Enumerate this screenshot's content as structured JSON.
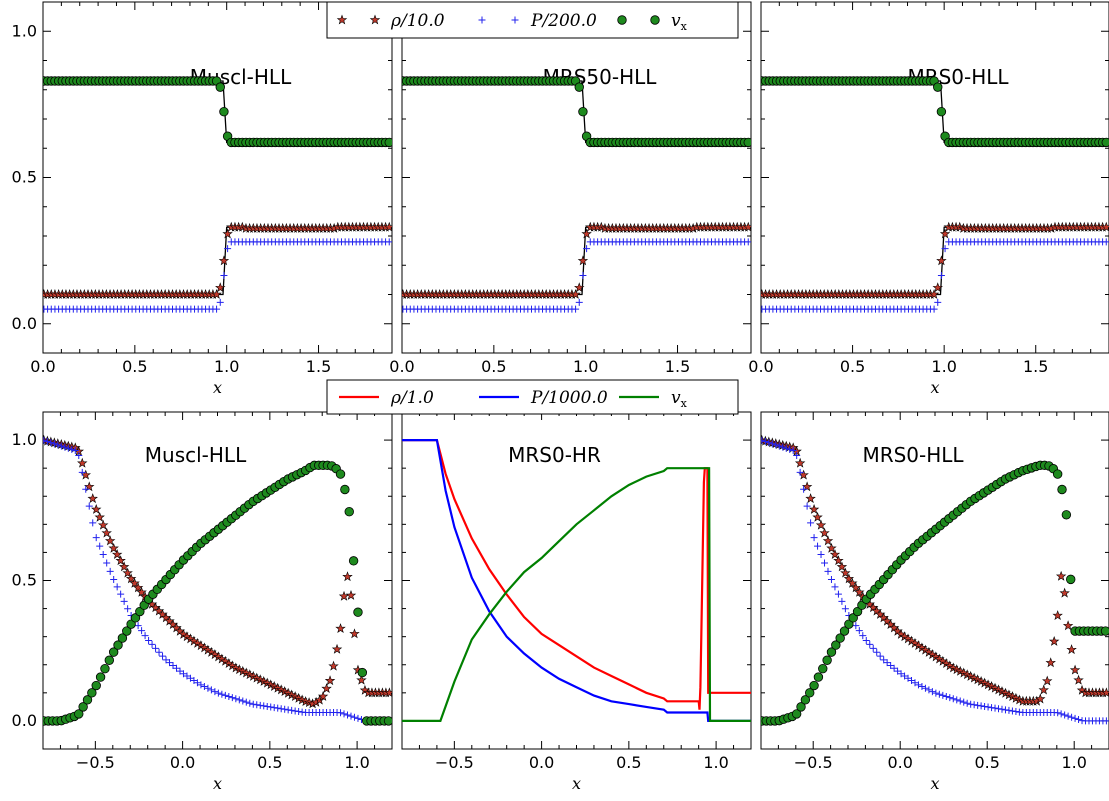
{
  "colors": {
    "rho": "#c0392b",
    "pressure": "#2222ee",
    "vx": "#1e8a1e",
    "exact": "#000000",
    "line_rho": "#ff0000",
    "line_p": "#0000ff",
    "line_vx": "#008000"
  },
  "legend_top": [
    {
      "label": "ρ/10.0",
      "marker": "star",
      "color": "#c0392b"
    },
    {
      "label": "P/200.0",
      "marker": "plus",
      "color": "#2222ee"
    },
    {
      "label": "v",
      "sub": "x",
      "marker": "circle",
      "color": "#1e8a1e"
    }
  ],
  "legend_bottom": [
    {
      "label": "ρ/1.0",
      "marker": "line",
      "color": "#ff0000"
    },
    {
      "label": "P/1000.0",
      "marker": "line",
      "color": "#0000ff"
    },
    {
      "label": "v",
      "sub": "x",
      "marker": "line",
      "color": "#008000"
    }
  ],
  "chart_data": [
    {
      "type": "scatter",
      "title": "Muscl-HLL",
      "xlabel": "x",
      "ylabel": "",
      "xlim": [
        0,
        1.9
      ],
      "ylim": [
        -0.1,
        1.1
      ],
      "xticks": [
        0.0,
        0.5,
        1.0,
        1.5
      ],
      "yticks": [
        0.0,
        0.5,
        1.0
      ],
      "shock_position": 0.98,
      "series": [
        {
          "name": "ρ/10.0",
          "marker": "star",
          "left": 0.1,
          "right": 0.33
        },
        {
          "name": "P/200.0",
          "marker": "plus",
          "left": 0.05,
          "right": 0.28
        },
        {
          "name": "v_x",
          "marker": "circle",
          "left": 0.83,
          "right": 0.62
        }
      ]
    },
    {
      "type": "scatter",
      "title": "MRS50-HLL",
      "xlabel": "x",
      "ylabel": "",
      "xlim": [
        0,
        1.9
      ],
      "ylim": [
        -0.1,
        1.1
      ],
      "xticks": [
        0.0,
        0.5,
        1.0,
        1.5
      ],
      "yticks": [
        0.0,
        0.5,
        1.0
      ],
      "shock_position": 0.98,
      "series": [
        {
          "name": "ρ/10.0",
          "marker": "star",
          "left": 0.1,
          "right": 0.33
        },
        {
          "name": "P/200.0",
          "marker": "plus",
          "left": 0.05,
          "right": 0.28
        },
        {
          "name": "v_x",
          "marker": "circle",
          "left": 0.83,
          "right": 0.62
        }
      ]
    },
    {
      "type": "scatter",
      "title": "MRS0-HLL",
      "xlabel": "x",
      "ylabel": "",
      "xlim": [
        0,
        1.9
      ],
      "ylim": [
        -0.1,
        1.1
      ],
      "xticks": [
        0.0,
        0.5,
        1.0,
        1.5
      ],
      "yticks": [
        0.0,
        0.5,
        1.0
      ],
      "shock_position": 0.98,
      "series": [
        {
          "name": "ρ/10.0",
          "marker": "star",
          "left": 0.1,
          "right": 0.33
        },
        {
          "name": "P/200.0",
          "marker": "plus",
          "left": 0.05,
          "right": 0.28
        },
        {
          "name": "v_x",
          "marker": "circle",
          "left": 0.83,
          "right": 0.62
        }
      ]
    },
    {
      "type": "scatter",
      "title": "Muscl-HLL",
      "xlabel": "x",
      "ylabel": "",
      "xlim": [
        -0.8,
        1.2
      ],
      "ylim": [
        -0.1,
        1.1
      ],
      "xticks": [
        -0.5,
        0.0,
        0.5,
        1.0
      ],
      "yticks": [
        0.0,
        0.5,
        1.0
      ],
      "series": [
        {
          "name": "ρ/1.0",
          "marker": "star",
          "x": [
            -0.8,
            -0.6,
            -0.5,
            -0.4,
            -0.3,
            -0.2,
            -0.1,
            0.0,
            0.1,
            0.2,
            0.3,
            0.4,
            0.5,
            0.6,
            0.7,
            0.75,
            0.8,
            0.85,
            0.9,
            0.94,
            0.97,
            1.0,
            1.05,
            1.2
          ],
          "y": [
            1.0,
            0.97,
            0.76,
            0.62,
            0.51,
            0.43,
            0.37,
            0.31,
            0.27,
            0.23,
            0.19,
            0.16,
            0.13,
            0.1,
            0.07,
            0.06,
            0.08,
            0.15,
            0.3,
            0.53,
            0.43,
            0.19,
            0.1,
            0.1
          ]
        },
        {
          "name": "P/1000.0",
          "marker": "plus",
          "x": [
            -0.8,
            -0.6,
            -0.5,
            -0.4,
            -0.3,
            -0.2,
            -0.1,
            0.0,
            0.1,
            0.2,
            0.3,
            0.4,
            0.5,
            0.6,
            0.7,
            0.8,
            0.9,
            0.95,
            1.0,
            1.05,
            1.2
          ],
          "y": [
            1.0,
            0.96,
            0.66,
            0.51,
            0.38,
            0.29,
            0.22,
            0.17,
            0.13,
            0.1,
            0.08,
            0.06,
            0.05,
            0.04,
            0.03,
            0.03,
            0.03,
            0.02,
            0.01,
            0.0,
            0.0
          ]
        },
        {
          "name": "v_x",
          "marker": "circle",
          "x": [
            -0.8,
            -0.7,
            -0.6,
            -0.5,
            -0.4,
            -0.3,
            -0.2,
            -0.1,
            0.0,
            0.1,
            0.2,
            0.3,
            0.4,
            0.5,
            0.6,
            0.7,
            0.75,
            0.8,
            0.85,
            0.9,
            0.95,
            1.0,
            1.05
          ],
          "y": [
            0.0,
            0.0,
            0.02,
            0.12,
            0.24,
            0.34,
            0.43,
            0.5,
            0.57,
            0.63,
            0.68,
            0.73,
            0.78,
            0.82,
            0.86,
            0.89,
            0.91,
            0.91,
            0.91,
            0.89,
            0.78,
            0.43,
            0.0
          ]
        }
      ]
    },
    {
      "type": "line",
      "title": "MRS0-HR",
      "xlabel": "x",
      "ylabel": "",
      "xlim": [
        -0.8,
        1.2
      ],
      "ylim": [
        -0.1,
        1.1
      ],
      "xticks": [
        -0.5,
        0.0,
        0.5,
        1.0
      ],
      "yticks": [
        0.0,
        0.5,
        1.0
      ],
      "series": [
        {
          "name": "ρ/1.0",
          "x": [
            -0.8,
            -0.6,
            -0.55,
            -0.5,
            -0.4,
            -0.3,
            -0.2,
            -0.1,
            0.0,
            0.1,
            0.2,
            0.3,
            0.4,
            0.5,
            0.6,
            0.7,
            0.72,
            0.9,
            0.905,
            0.91,
            0.915,
            0.93,
            0.935,
            0.95,
            0.955,
            1.2
          ],
          "y": [
            1.0,
            1.0,
            0.88,
            0.79,
            0.65,
            0.54,
            0.45,
            0.37,
            0.31,
            0.27,
            0.23,
            0.19,
            0.16,
            0.13,
            0.1,
            0.08,
            0.07,
            0.07,
            0.04,
            0.12,
            0.3,
            0.85,
            0.9,
            0.9,
            0.1,
            0.1
          ]
        },
        {
          "name": "P/1000.0",
          "x": [
            -0.8,
            -0.6,
            -0.55,
            -0.5,
            -0.4,
            -0.3,
            -0.2,
            -0.1,
            0.0,
            0.1,
            0.2,
            0.3,
            0.4,
            0.5,
            0.6,
            0.7,
            0.72,
            0.95,
            0.955,
            1.2
          ],
          "y": [
            1.0,
            1.0,
            0.82,
            0.69,
            0.51,
            0.39,
            0.3,
            0.24,
            0.19,
            0.15,
            0.12,
            0.09,
            0.07,
            0.06,
            0.05,
            0.04,
            0.03,
            0.03,
            0.0,
            0.0
          ]
        },
        {
          "name": "v_x",
          "x": [
            -0.8,
            -0.58,
            -0.5,
            -0.4,
            -0.3,
            -0.2,
            -0.1,
            0.0,
            0.1,
            0.2,
            0.3,
            0.4,
            0.5,
            0.6,
            0.7,
            0.72,
            0.96,
            0.965,
            1.2
          ],
          "y": [
            0.0,
            0.0,
            0.14,
            0.29,
            0.38,
            0.46,
            0.53,
            0.58,
            0.64,
            0.7,
            0.75,
            0.8,
            0.84,
            0.87,
            0.89,
            0.9,
            0.9,
            0.0,
            0.0
          ]
        }
      ]
    },
    {
      "type": "scatter",
      "title": "MRS0-HLL",
      "xlabel": "x",
      "ylabel": "",
      "xlim": [
        -0.8,
        1.2
      ],
      "ylim": [
        -0.1,
        1.1
      ],
      "xticks": [
        -0.5,
        0.0,
        0.5,
        1.0
      ],
      "yticks": [
        0.0,
        0.5,
        1.0
      ],
      "series": [
        {
          "name": "ρ/1.0",
          "marker": "star",
          "x": [
            -0.8,
            -0.6,
            -0.5,
            -0.4,
            -0.3,
            -0.2,
            -0.1,
            0.0,
            0.1,
            0.2,
            0.3,
            0.4,
            0.5,
            0.6,
            0.7,
            0.75,
            0.8,
            0.85,
            0.9,
            0.93,
            0.96,
            1.0,
            1.05,
            1.2
          ],
          "y": [
            1.0,
            0.97,
            0.76,
            0.62,
            0.51,
            0.43,
            0.37,
            0.31,
            0.27,
            0.23,
            0.19,
            0.16,
            0.13,
            0.1,
            0.07,
            0.07,
            0.07,
            0.15,
            0.34,
            0.55,
            0.36,
            0.19,
            0.1,
            0.1
          ]
        },
        {
          "name": "P/1000.0",
          "marker": "plus",
          "x": [
            -0.8,
            -0.6,
            -0.5,
            -0.4,
            -0.3,
            -0.2,
            -0.1,
            0.0,
            0.1,
            0.2,
            0.3,
            0.4,
            0.5,
            0.6,
            0.7,
            0.8,
            0.9,
            0.95,
            1.0,
            1.05,
            1.2
          ],
          "y": [
            1.0,
            0.96,
            0.66,
            0.51,
            0.38,
            0.29,
            0.22,
            0.17,
            0.13,
            0.1,
            0.08,
            0.06,
            0.05,
            0.04,
            0.03,
            0.03,
            0.03,
            0.02,
            0.01,
            0.0,
            0.0
          ]
        },
        {
          "name": "v_x",
          "marker": "circle",
          "x": [
            -0.8,
            -0.7,
            -0.6,
            -0.5,
            -0.4,
            -0.3,
            -0.2,
            -0.1,
            0.0,
            0.1,
            0.2,
            0.3,
            0.4,
            0.5,
            0.6,
            0.7,
            0.75,
            0.8,
            0.85,
            0.9,
            0.95,
            1.0
          ],
          "y": [
            0.0,
            0.0,
            0.02,
            0.12,
            0.24,
            0.34,
            0.43,
            0.5,
            0.57,
            0.63,
            0.68,
            0.73,
            0.78,
            0.82,
            0.86,
            0.89,
            0.9,
            0.91,
            0.91,
            0.89,
            0.78,
            0.32
          ]
        }
      ]
    }
  ]
}
